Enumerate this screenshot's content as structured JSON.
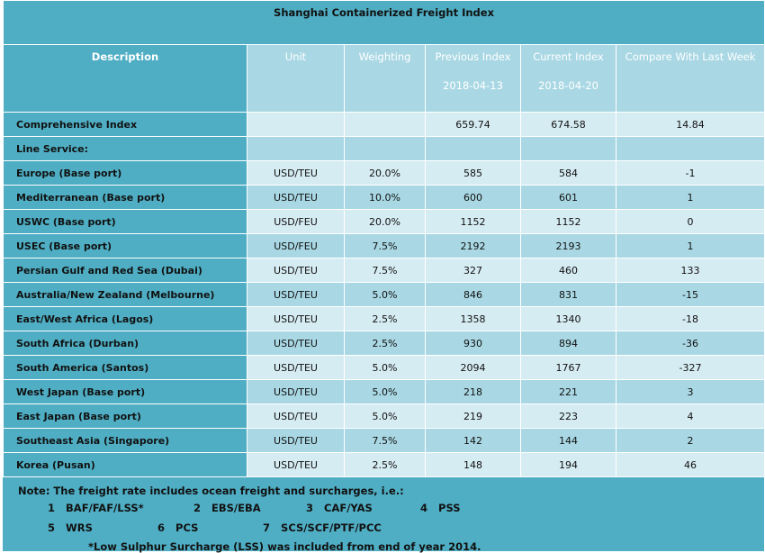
{
  "title": "Shanghai Containerized Freight Index",
  "headers": {
    "description": "Description",
    "unit": "Unit",
    "weighting": "Weighting",
    "previous": "Previous Index",
    "previous_date": "2018-04-13",
    "current": "Current Index",
    "current_date": "2018-04-20",
    "compare": "Compare With Last Week"
  },
  "rows": [
    {
      "name": "Comprehensive Index",
      "unit": "",
      "weight": "",
      "prev": "659.74",
      "curr": "674.58",
      "cmp": "14.84"
    },
    {
      "name": "Line Service:",
      "unit": "",
      "weight": "",
      "prev": "",
      "curr": "",
      "cmp": ""
    },
    {
      "name": "Europe (Base port)",
      "unit": "USD/TEU",
      "weight": "20.0%",
      "prev": "585",
      "curr": "584",
      "cmp": "-1"
    },
    {
      "name": "Mediterranean (Base port)",
      "unit": "USD/TEU",
      "weight": "10.0%",
      "prev": "600",
      "curr": "601",
      "cmp": "1"
    },
    {
      "name": "USWC (Base port)",
      "unit": "USD/FEU",
      "weight": "20.0%",
      "prev": "1152",
      "curr": "1152",
      "cmp": "0"
    },
    {
      "name": "USEC (Base port)",
      "unit": "USD/FEU",
      "weight": "7.5%",
      "prev": "2192",
      "curr": "2193",
      "cmp": "1"
    },
    {
      "name": "Persian Gulf and Red Sea (Dubai)",
      "unit": "USD/TEU",
      "weight": "7.5%",
      "prev": "327",
      "curr": "460",
      "cmp": "133"
    },
    {
      "name": "Australia/New Zealand (Melbourne)",
      "unit": "USD/TEU",
      "weight": "5.0%",
      "prev": "846",
      "curr": "831",
      "cmp": "-15"
    },
    {
      "name": "East/West Africa (Lagos)",
      "unit": "USD/TEU",
      "weight": "2.5%",
      "prev": "1358",
      "curr": "1340",
      "cmp": "-18"
    },
    {
      "name": "South Africa (Durban)",
      "unit": "USD/TEU",
      "weight": "2.5%",
      "prev": "930",
      "curr": "894",
      "cmp": "-36"
    },
    {
      "name": "South America (Santos)",
      "unit": "USD/TEU",
      "weight": "5.0%",
      "prev": "2094",
      "curr": "1767",
      "cmp": "-327"
    },
    {
      "name": "West Japan (Base port)",
      "unit": "USD/TEU",
      "weight": "5.0%",
      "prev": "218",
      "curr": "221",
      "cmp": "3"
    },
    {
      "name": "East Japan (Base port)",
      "unit": "USD/TEU",
      "weight": "5.0%",
      "prev": "219",
      "curr": "223",
      "cmp": "4"
    },
    {
      "name": "Southeast Asia (Singapore)",
      "unit": "USD/TEU",
      "weight": "7.5%",
      "prev": "142",
      "curr": "144",
      "cmp": "2"
    },
    {
      "name": "Korea (Pusan)",
      "unit": "USD/TEU",
      "weight": "2.5%",
      "prev": "148",
      "curr": "194",
      "cmp": "46"
    }
  ],
  "note": {
    "intro": "Note: The freight rate includes ocean freight and surcharges, i.e.:",
    "items": [
      {
        "num": "1",
        "text": "BAF/FAF/LSS*"
      },
      {
        "num": "2",
        "text": "EBS/EBA"
      },
      {
        "num": "3",
        "text": "CAF/YAS"
      },
      {
        "num": "4",
        "text": "PSS"
      },
      {
        "num": "5",
        "text": "WRS"
      },
      {
        "num": "6",
        "text": "PCS"
      },
      {
        "num": "7",
        "text": "SCS/SCF/PTF/PCC"
      }
    ],
    "footnote": "*Low Sulphur Surcharge (LSS) was included from end of year 2014."
  }
}
